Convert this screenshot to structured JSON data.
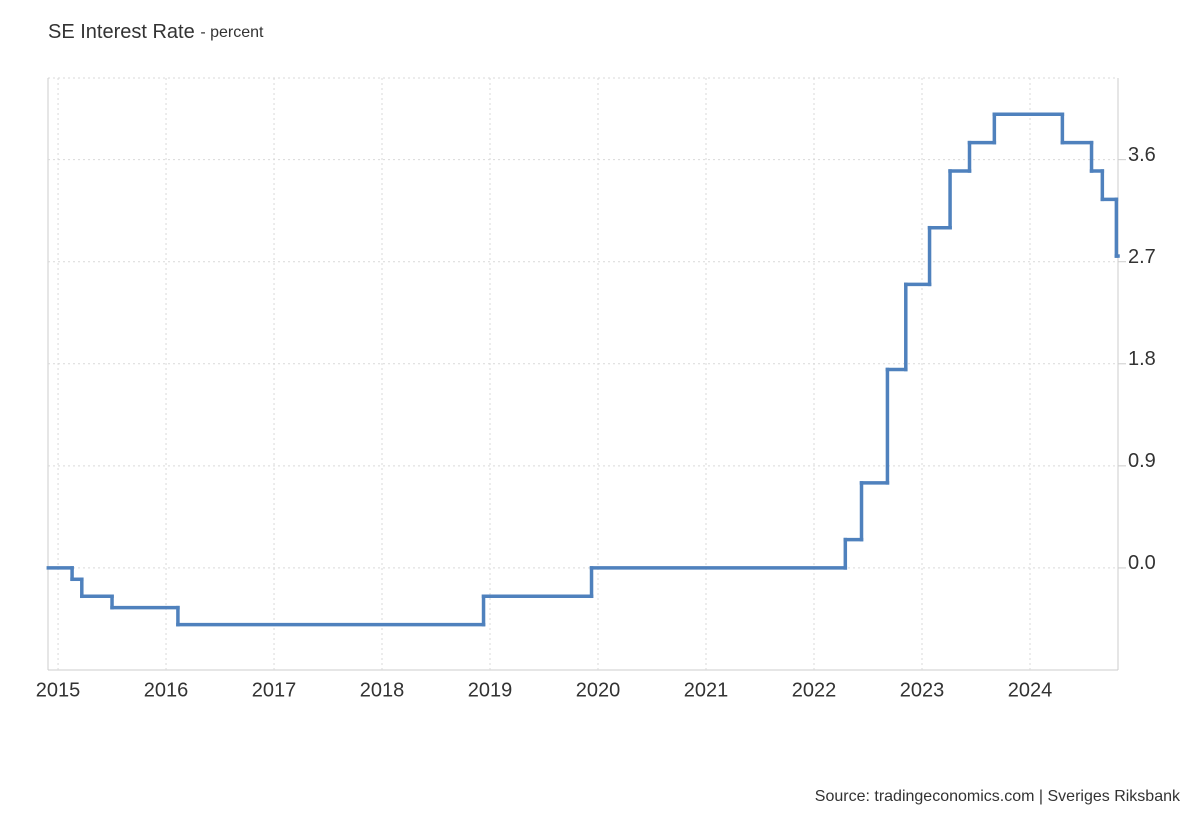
{
  "chart_data": {
    "type": "step-line",
    "title": "SE Interest Rate",
    "subtitle": "- percent",
    "source": "Source: tradingeconomics.com | Sveriges Riksbank",
    "series": [
      {
        "name": "SE Interest Rate",
        "color": "#4f81bd",
        "x": [
          2014.91,
          2015.13,
          2015.22,
          2015.5,
          2016.11,
          2018.94,
          2019.94,
          2022.29,
          2022.44,
          2022.68,
          2022.85,
          2023.07,
          2023.26,
          2023.44,
          2023.67,
          2024.3,
          2024.57,
          2024.67,
          2024.8
        ],
        "values": [
          0,
          -0.1,
          -0.25,
          -0.35,
          -0.5,
          -0.25,
          0,
          0.25,
          0.75,
          1.75,
          2.5,
          3.0,
          3.5,
          3.75,
          4.0,
          3.75,
          3.5,
          3.25,
          2.75
        ]
      }
    ],
    "xlim": [
      2014.907,
      2024.815
    ],
    "xticks": [
      2015,
      2016,
      2017,
      2018,
      2019,
      2020,
      2021,
      2022,
      2023,
      2024
    ],
    "ylim": [
      -0.9,
      4.32
    ],
    "yticks": [
      {
        "value": 0,
        "label": "0.0"
      },
      0.9,
      1.8,
      2.7,
      3.6
    ],
    "grid": true
  }
}
